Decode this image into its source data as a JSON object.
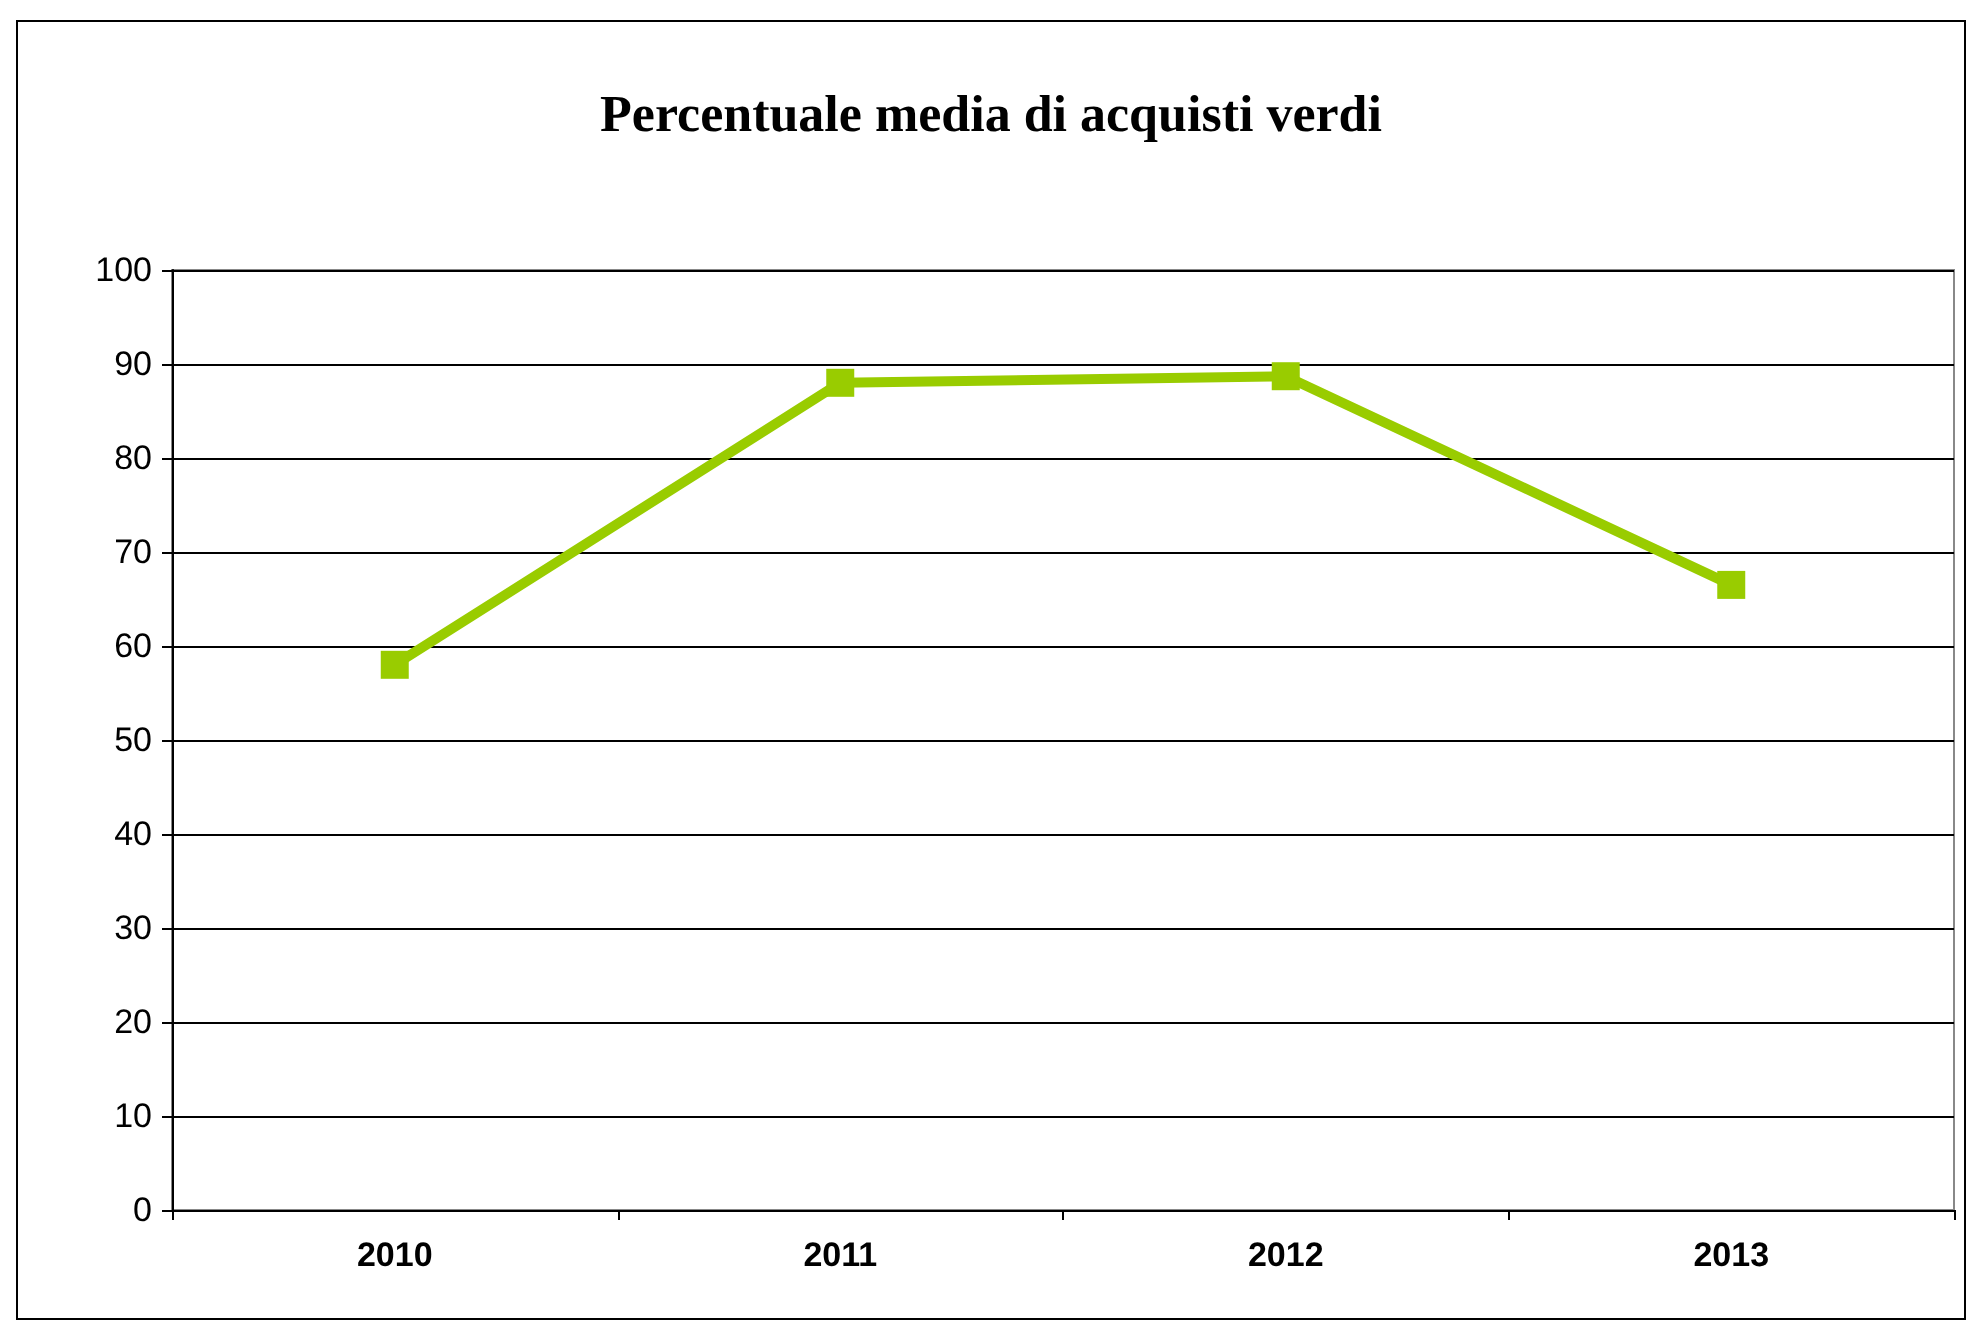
{
  "chart_data": {
    "type": "line",
    "title": "Percentuale media di acquisti verdi",
    "categories": [
      "2010",
      "2011",
      "2012",
      "2013"
    ],
    "series": [
      {
        "color": "#99cc00",
        "values": [
          58,
          88,
          88.7,
          66.5
        ]
      }
    ],
    "ylim": [
      0,
      100
    ],
    "yticks": [
      0,
      10,
      20,
      30,
      40,
      50,
      60,
      70,
      80,
      90,
      100
    ],
    "grid": "y",
    "marker": "square",
    "line_style": "solid"
  }
}
